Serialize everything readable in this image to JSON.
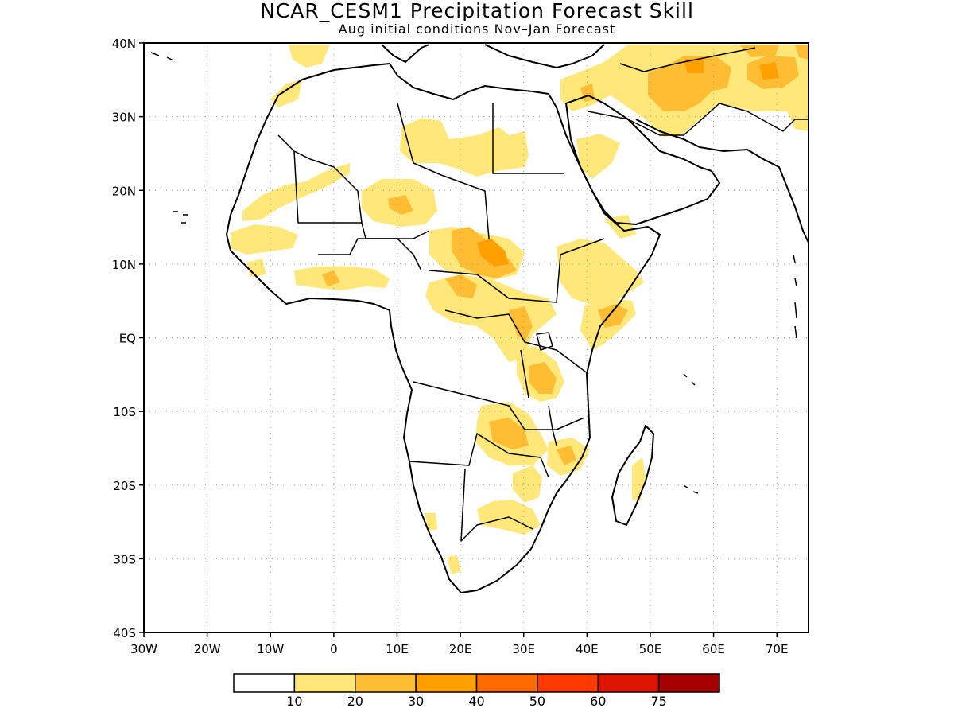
{
  "title": "NCAR_CESM1 Precipitation Forecast Skill",
  "subtitle": "Aug initial conditions  Nov–Jan Forecast",
  "map": {
    "lon_range": [
      -30,
      75
    ],
    "lat_range": [
      -40,
      40
    ],
    "grid": "dotted",
    "y_ticks": [
      "40N",
      "30N",
      "20N",
      "10N",
      "EQ",
      "10S",
      "20S",
      "30S",
      "40S"
    ],
    "x_ticks": [
      "30W",
      "20W",
      "10W",
      "0",
      "10E",
      "20E",
      "30E",
      "40E",
      "50E",
      "60E",
      "70E"
    ]
  },
  "colorbar": {
    "colors": [
      "#ffffff",
      "#ffe77a",
      "#ffbd34",
      "#ff9f00",
      "#ff6a00",
      "#ff3a00",
      "#dd1500",
      "#a50000"
    ],
    "labels": [
      "10",
      "20",
      "30",
      "40",
      "50",
      "60",
      "75"
    ]
  }
}
